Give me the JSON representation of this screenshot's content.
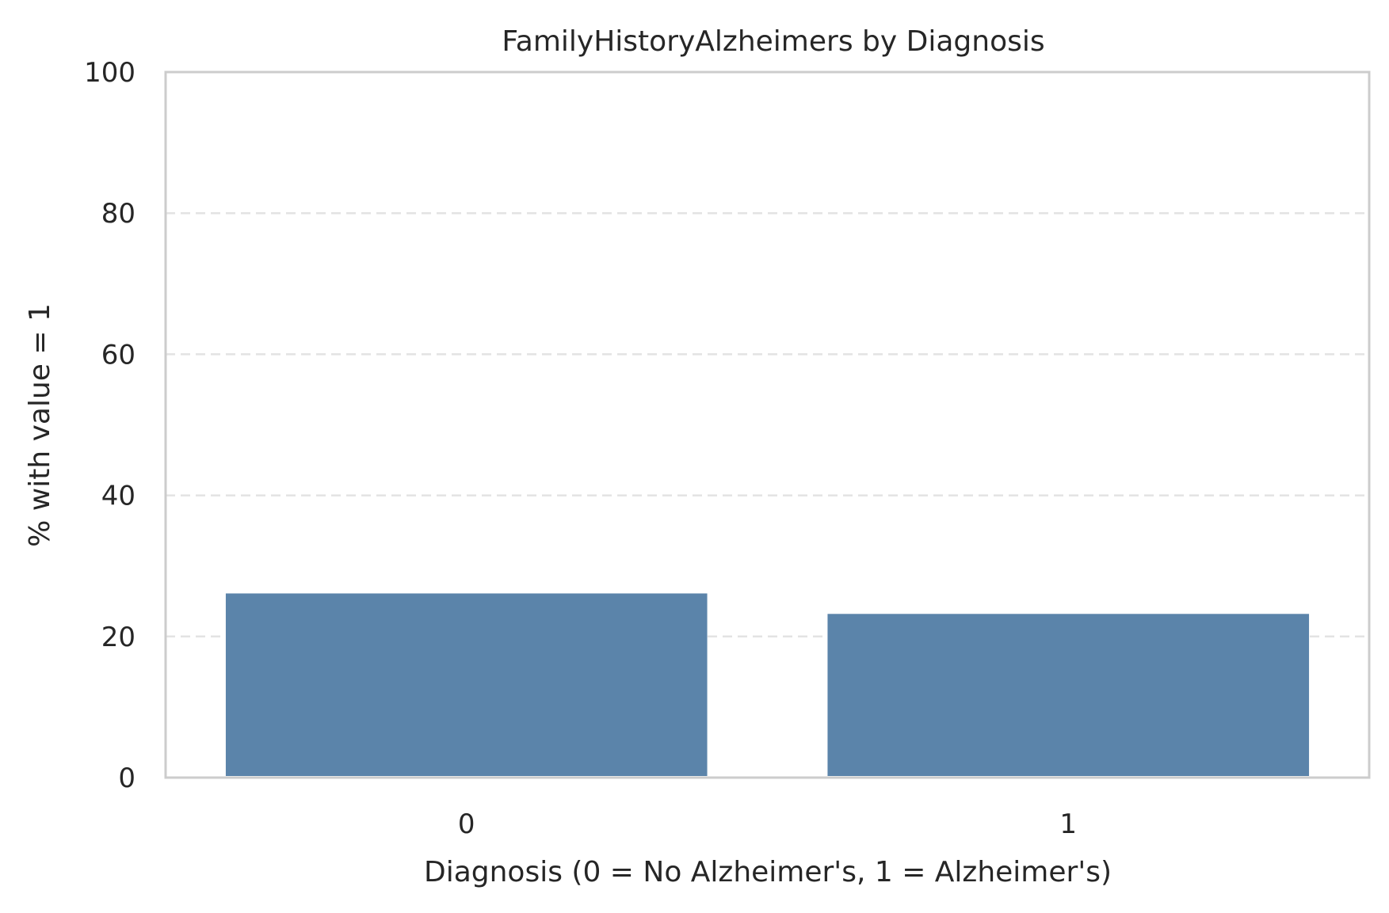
{
  "chart_data": {
    "type": "bar",
    "title": "FamilyHistoryAlzheimers by Diagnosis",
    "xlabel": "Diagnosis (0 = No Alzheimer's, 1 = Alzheimer's)",
    "ylabel": "% with value = 1",
    "categories": [
      "0",
      "1"
    ],
    "values": [
      26.1,
      23.2
    ],
    "ylim": [
      0,
      100
    ],
    "yticks": [
      0,
      20,
      40,
      60,
      80,
      100
    ],
    "grid": "horizontal dashed",
    "bar_color": "#5b84aa"
  }
}
